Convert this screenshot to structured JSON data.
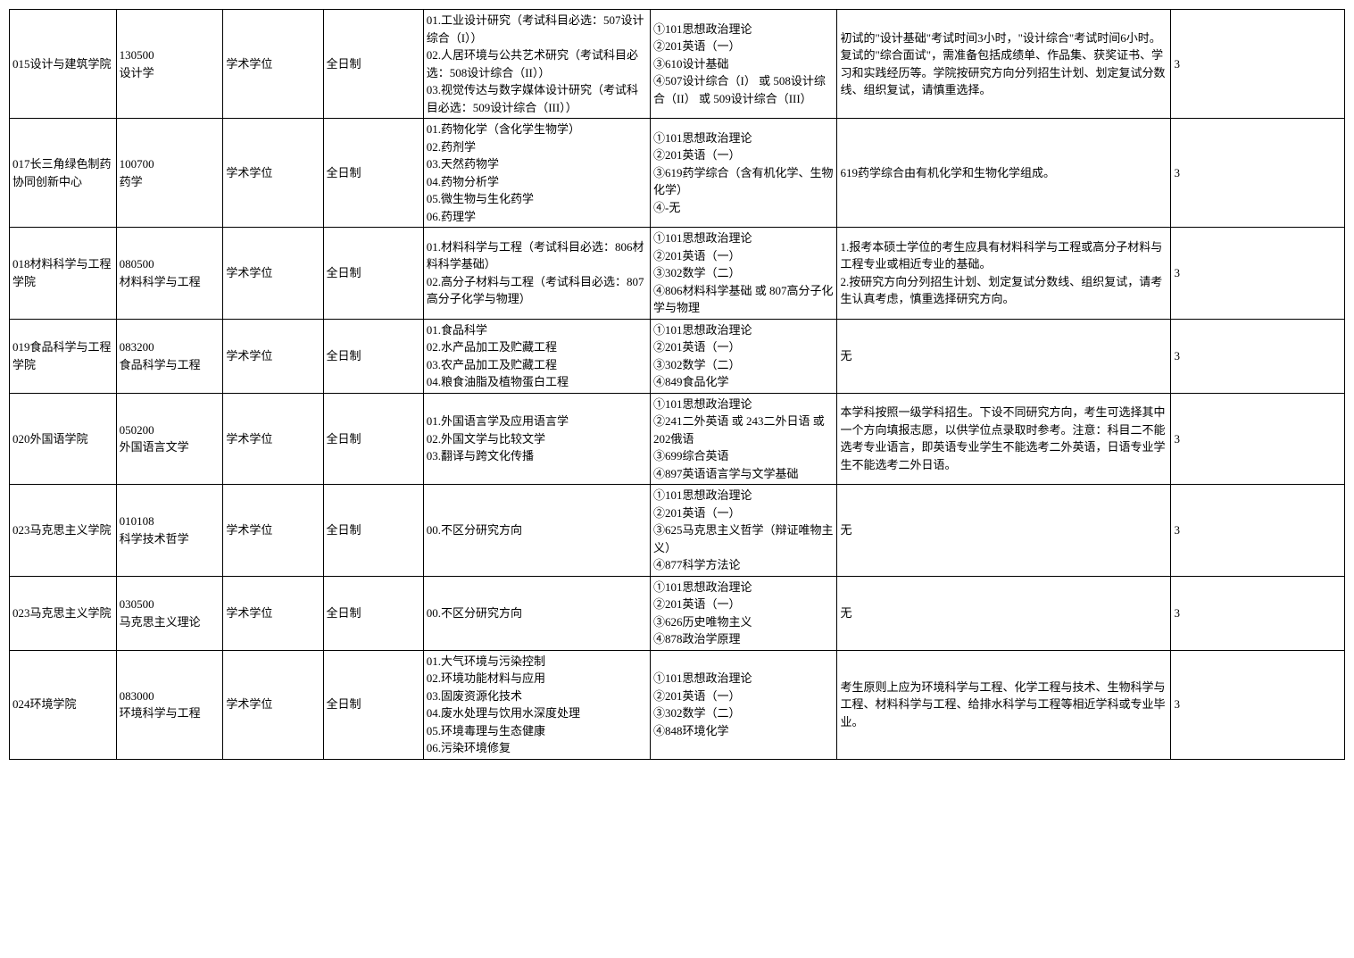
{
  "table": {
    "rows": [
      {
        "dept": "015设计与建筑学院",
        "major": "130500\n设计学",
        "degree": "学术学位",
        "mode": "全日制",
        "direction": "01.工业设计研究（考试科目必选：507设计综合（I））\n02.人居环境与公共艺术研究（考试科目必选：508设计综合（II））\n03.视觉传达与数字媒体设计研究（考试科目必选：509设计综合（III））",
        "exam": "①101思想政治理论\n②201英语（一）\n③610设计基础\n④507设计综合（I） 或 508设计综合（II） 或 509设计综合（III）",
        "remark": "初试的\"设计基础\"考试时间3小时，\"设计综合\"考试时间6小时。复试的\"综合面试\"，需准备包括成绩单、作品集、获奖证书、学习和实践经历等。学院按研究方向分列招生计划、划定复试分数线、组织复试，请慎重选择。",
        "years": "3"
      },
      {
        "dept": "017长三角绿色制药协同创新中心",
        "major": "100700\n药学",
        "degree": "学术学位",
        "mode": "全日制",
        "direction": "01.药物化学（含化学生物学）\n02.药剂学\n03.天然药物学\n04.药物分析学\n05.微生物与生化药学\n06.药理学",
        "exam": "①101思想政治理论\n②201英语（一）\n③619药学综合（含有机化学、生物化学）\n④-无",
        "remark": "619药学综合由有机化学和生物化学组成。",
        "years": "3"
      },
      {
        "dept": "018材料科学与工程学院",
        "major": "080500\n材料科学与工程",
        "degree": "学术学位",
        "mode": "全日制",
        "direction": "01.材料科学与工程（考试科目必选：806材料科学基础）\n02.高分子材料与工程（考试科目必选：807高分子化学与物理）",
        "exam": "①101思想政治理论\n②201英语（一）\n③302数学（二）\n④806材料科学基础 或 807高分子化学与物理",
        "remark": "1.报考本硕士学位的考生应具有材料科学与工程或高分子材料与工程专业或相近专业的基础。\n2.按研究方向分列招生计划、划定复试分数线、组织复试，请考生认真考虑，慎重选择研究方向。",
        "years": "3"
      },
      {
        "dept": "019食品科学与工程学院",
        "major": "083200\n食品科学与工程",
        "degree": "学术学位",
        "mode": "全日制",
        "direction": "01.食品科学\n02.水产品加工及贮藏工程\n03.农产品加工及贮藏工程\n04.粮食油脂及植物蛋白工程",
        "exam": "①101思想政治理论\n②201英语（一）\n③302数学（二）\n④849食品化学",
        "remark": "无",
        "years": "3"
      },
      {
        "dept": "020外国语学院",
        "major": "050200\n外国语言文学",
        "degree": "学术学位",
        "mode": "全日制",
        "direction": "01.外国语言学及应用语言学\n02.外国文学与比较文学\n03.翻译与跨文化传播",
        "exam": "①101思想政治理论\n②241二外英语 或 243二外日语 或 202俄语\n③699综合英语\n④897英语语言学与文学基础",
        "remark": "本学科按照一级学科招生。下设不同研究方向，考生可选择其中一个方向填报志愿，以供学位点录取时参考。注意：科目二不能选考专业语言，即英语专业学生不能选考二外英语，日语专业学生不能选考二外日语。",
        "years": "3"
      },
      {
        "dept": "023马克思主义学院",
        "major": "010108\n科学技术哲学",
        "degree": "学术学位",
        "mode": "全日制",
        "direction": "00.不区分研究方向",
        "exam": "①101思想政治理论\n②201英语（一）\n③625马克思主义哲学（辩证唯物主义）\n④877科学方法论",
        "remark": "无",
        "years": "3"
      },
      {
        "dept": "023马克思主义学院",
        "major": "030500\n马克思主义理论",
        "degree": "学术学位",
        "mode": "全日制",
        "direction": "00.不区分研究方向",
        "exam": "①101思想政治理论\n②201英语（一）\n③626历史唯物主义\n④878政治学原理",
        "remark": "无",
        "years": "3"
      },
      {
        "dept": "024环境学院",
        "major": "083000\n环境科学与工程",
        "degree": "学术学位",
        "mode": "全日制",
        "direction": "01.大气环境与污染控制\n02.环境功能材料与应用\n03.固废资源化技术\n04.废水处理与饮用水深度处理\n05.环境毒理与生态健康\n06.污染环境修复",
        "exam": "①101思想政治理论\n②201英语（一）\n③302数学（二）\n④848环境化学",
        "remark": "考生原则上应为环境科学与工程、化学工程与技术、生物科学与工程、材料科学与工程、给排水科学与工程等相近学科或专业毕业。",
        "years": "3"
      }
    ]
  }
}
